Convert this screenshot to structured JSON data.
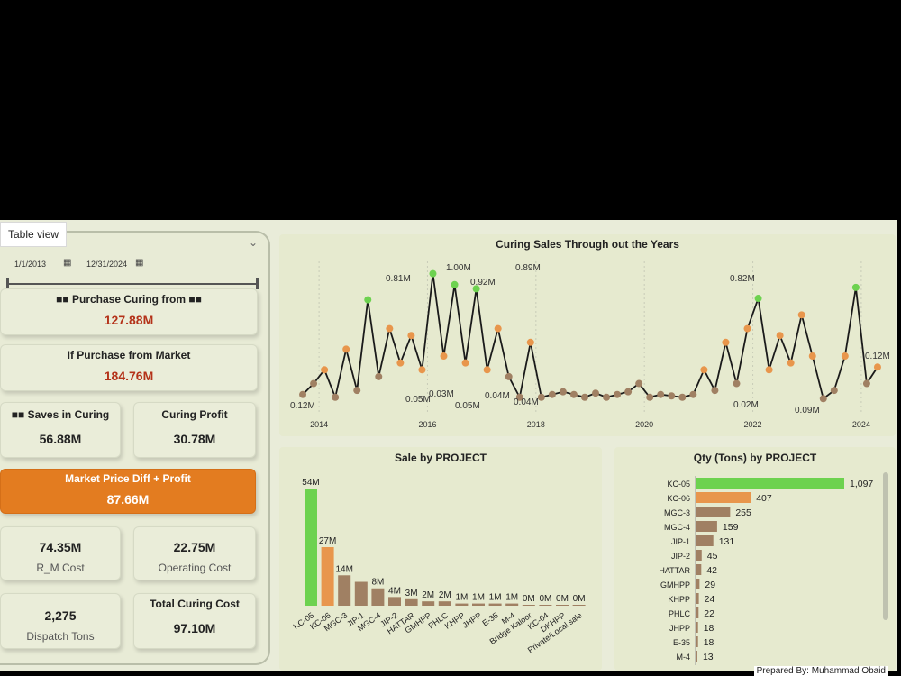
{
  "table_view_label": "Table view",
  "filters": {
    "start_date": "1/1/2013",
    "end_date": "12/31/2024"
  },
  "kpis": {
    "purchase_curing": {
      "label": "Purchase Curing from",
      "value": "127.88M"
    },
    "purchase_market": {
      "label": "If Purchase from Market",
      "value": "184.76M"
    },
    "saves": {
      "label": "Saves in Curing",
      "value": "56.88M"
    },
    "curing_profit": {
      "label": "Curing Profit",
      "value": "30.78M"
    },
    "market_diff": {
      "label": "Market Price Diff + Profit",
      "value": "87.66M"
    },
    "rm_cost": {
      "label": "R_M Cost",
      "value": "74.35M"
    },
    "operating_cost": {
      "label": "Operating Cost",
      "value": "22.75M"
    },
    "dispatch": {
      "label": "Dispatch Tons",
      "value": "2,275"
    },
    "total_cost": {
      "label": "Total Curing Cost",
      "value": "97.10M"
    }
  },
  "credit": "Prepared By: Muhammad Obaid",
  "chart_data": [
    {
      "type": "line",
      "title": "Curing Sales Through out the Years",
      "x_ticks": [
        "2014",
        "2016",
        "2018",
        "2020",
        "2022",
        "2024"
      ],
      "annotations": [
        "1.00M",
        "0.92M",
        "0.89M",
        "0.82M",
        "0.81M",
        "0.12M",
        "0.12M",
        "0.09M",
        "0.05M",
        "0.05M",
        "0.04M",
        "0.03M",
        "0.02M",
        "0.04M"
      ],
      "x": [
        2013.7,
        2013.9,
        2014.1,
        2014.3,
        2014.5,
        2014.7,
        2014.9,
        2015.1,
        2015.3,
        2015.5,
        2015.7,
        2015.9,
        2016.1,
        2016.3,
        2016.5,
        2016.7,
        2016.9,
        2017.1,
        2017.3,
        2017.5,
        2017.7,
        2017.9,
        2018.1,
        2018.3,
        2018.5,
        2018.7,
        2018.9,
        2019.1,
        2019.3,
        2019.5,
        2019.7,
        2019.9,
        2020.1,
        2020.3,
        2020.5,
        2020.7,
        2020.9,
        2021.1,
        2021.3,
        2021.5,
        2021.7,
        2021.9,
        2022.1,
        2022.3,
        2022.5,
        2022.7,
        2022.9,
        2023.1,
        2023.3,
        2023.5,
        2023.7,
        2023.9,
        2024.1,
        2024.3
      ],
      "values": [
        0.12,
        0.2,
        0.3,
        0.1,
        0.45,
        0.15,
        0.81,
        0.25,
        0.6,
        0.35,
        0.55,
        0.3,
        1.0,
        0.4,
        0.92,
        0.35,
        0.89,
        0.3,
        0.6,
        0.25,
        0.1,
        0.5,
        0.1,
        0.12,
        0.14,
        0.12,
        0.1,
        0.13,
        0.1,
        0.12,
        0.14,
        0.2,
        0.1,
        0.12,
        0.11,
        0.1,
        0.12,
        0.3,
        0.15,
        0.5,
        0.2,
        0.6,
        0.82,
        0.3,
        0.55,
        0.35,
        0.7,
        0.4,
        0.09,
        0.15,
        0.4,
        0.9,
        0.2,
        0.32
      ]
    },
    {
      "type": "bar",
      "title": "Sale by PROJECT",
      "categories": [
        "KC-05",
        "KC-06",
        "MGC-3",
        "JIP-1",
        "MGC-4",
        "JIP-2",
        "HATTAR",
        "GMHPP",
        "PHLC",
        "KHPP",
        "JHPP",
        "E-35",
        "M-4",
        "Bridge Kaloor",
        "KC-04",
        "DKHPP",
        "Private/Local sale"
      ],
      "values": [
        54,
        27,
        14,
        11,
        8,
        4,
        3,
        2,
        2,
        1,
        1,
        1,
        1,
        0.4,
        0.3,
        0.2,
        0.1
      ],
      "data_labels": [
        "54M",
        "27M",
        "14M",
        "",
        "8M",
        "4M",
        "3M",
        "2M",
        "2M",
        "1M",
        "1M",
        "1M",
        "1M",
        "0M",
        "0M",
        "0M",
        "0M"
      ]
    },
    {
      "type": "bar",
      "orientation": "horizontal",
      "title": "Qty (Tons) by PROJECT",
      "categories": [
        "KC-05",
        "KC-06",
        "MGC-3",
        "MGC-4",
        "JIP-1",
        "JIP-2",
        "HATTAR",
        "GMHPP",
        "KHPP",
        "PHLC",
        "JHPP",
        "E-35",
        "M-4"
      ],
      "values": [
        1097,
        407,
        255,
        159,
        131,
        45,
        42,
        29,
        24,
        22,
        18,
        18,
        13
      ],
      "data_labels": [
        "1,097",
        "407",
        "255",
        "159",
        "131",
        "45",
        "42",
        "29",
        "24",
        "22",
        "18",
        "18",
        "13"
      ]
    }
  ],
  "colors": {
    "highlight": "#6dd24f",
    "orange": "#e8964c",
    "brown": "#a08063",
    "background": "#e9ecd9",
    "accent": "#e37c20"
  }
}
